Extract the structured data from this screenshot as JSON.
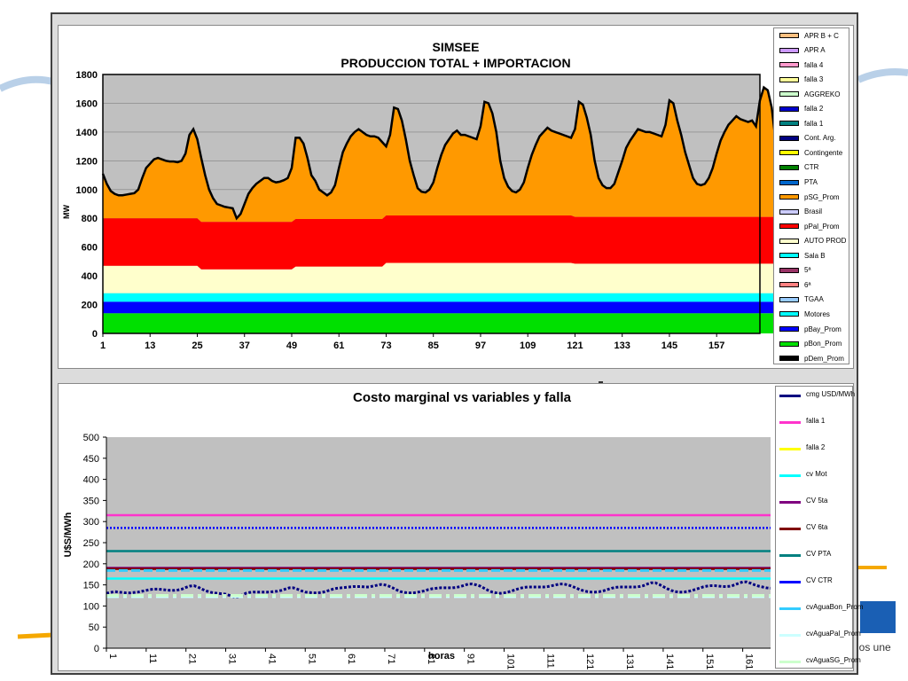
{
  "slide": {
    "logo_text": "nos une",
    "colors": {
      "frame": "#dcdcdc",
      "plot_bg": "#c0c0c0",
      "accent": "#f5a800"
    }
  },
  "chart_top": {
    "chart_data": {
      "type": "area",
      "title": "SIMSEE",
      "subtitle": "PRODUCCION TOTAL + IMPORTACION",
      "ylabel": "MW",
      "xlabel": "",
      "ylim": [
        0,
        1800
      ],
      "xlim": [
        1,
        168
      ],
      "yticks": [
        "0",
        "200",
        "400",
        "600",
        "800",
        "1000",
        "1200",
        "1400",
        "1600",
        "1800"
      ],
      "xticks": [
        "1",
        "13",
        "25",
        "37",
        "49",
        "61",
        "73",
        "85",
        "97",
        "109",
        "121",
        "133",
        "145",
        "157"
      ],
      "grid": true,
      "legend_position": "right",
      "stack_order": [
        "pBon_Prom",
        "pBay_Prom",
        "Motores",
        "AUTO PROD",
        "pPal_Prom",
        "pSG_Prom"
      ],
      "layers": [
        {
          "name": "pBon_Prom",
          "color": "#00e000",
          "segments": [
            [
              1,
              140
            ],
            [
              168,
              140
            ]
          ]
        },
        {
          "name": "pBay_Prom",
          "color": "#0000ff",
          "segments": [
            [
              1,
              80
            ],
            [
              168,
              80
            ]
          ]
        },
        {
          "name": "Motores",
          "color": "#00ffff",
          "segments": [
            [
              1,
              60
            ],
            [
              168,
              60
            ]
          ]
        },
        {
          "name": "AUTO PROD",
          "color": "#ffffcc",
          "segments": [
            [
              1,
              190
            ],
            [
              25,
              190
            ],
            [
              26,
              165
            ],
            [
              49,
              165
            ],
            [
              50,
              185
            ],
            [
              72,
              185
            ],
            [
              73,
              210
            ],
            [
              120,
              210
            ],
            [
              121,
              205
            ],
            [
              168,
              205
            ]
          ]
        },
        {
          "name": "pPal_Prom",
          "color": "#ff0000",
          "segments": [
            [
              1,
              330
            ],
            [
              25,
              330
            ],
            [
              26,
              330
            ],
            [
              49,
              330
            ],
            [
              50,
              330
            ],
            [
              72,
              330
            ],
            [
              73,
              330
            ],
            [
              120,
              330
            ],
            [
              121,
              325
            ],
            [
              168,
              325
            ]
          ]
        }
      ],
      "pDem_Prom": [
        1110,
        1040,
        990,
        970,
        960,
        960,
        965,
        970,
        975,
        1000,
        1080,
        1150,
        1180,
        1210,
        1220,
        1210,
        1200,
        1195,
        1195,
        1190,
        1200,
        1250,
        1380,
        1420,
        1350,
        1220,
        1100,
        1000,
        940,
        900,
        890,
        880,
        875,
        870,
        800,
        830,
        900,
        970,
        1010,
        1040,
        1060,
        1080,
        1080,
        1060,
        1050,
        1055,
        1065,
        1080,
        1150,
        1360,
        1360,
        1320,
        1220,
        1100,
        1060,
        1000,
        980,
        960,
        980,
        1030,
        1150,
        1260,
        1320,
        1370,
        1400,
        1420,
        1400,
        1380,
        1370,
        1370,
        1360,
        1330,
        1300,
        1380,
        1570,
        1560,
        1480,
        1350,
        1200,
        1100,
        1010,
        985,
        980,
        1000,
        1050,
        1150,
        1240,
        1310,
        1350,
        1390,
        1410,
        1380,
        1380,
        1370,
        1360,
        1350,
        1440,
        1610,
        1600,
        1530,
        1400,
        1200,
        1080,
        1020,
        990,
        980,
        1000,
        1050,
        1150,
        1240,
        1310,
        1370,
        1400,
        1430,
        1410,
        1400,
        1390,
        1380,
        1370,
        1360,
        1420,
        1610,
        1590,
        1500,
        1380,
        1200,
        1080,
        1030,
        1010,
        1010,
        1040,
        1120,
        1200,
        1290,
        1340,
        1380,
        1420,
        1410,
        1400,
        1400,
        1390,
        1380,
        1370,
        1450,
        1620,
        1600,
        1480,
        1380,
        1260,
        1170,
        1080,
        1040,
        1030,
        1040,
        1080,
        1150,
        1250,
        1340,
        1400,
        1450,
        1480,
        1510,
        1490,
        1480,
        1470,
        1480,
        1440,
        1620,
        1710,
        1690,
        1570,
        1330
      ],
      "legend": [
        {
          "name": "APR B + C",
          "color": "#ffc080"
        },
        {
          "name": "APR A",
          "color": "#cc99ff"
        },
        {
          "name": "falla 4",
          "color": "#ff99cc"
        },
        {
          "name": "falla 3",
          "color": "#ffff99"
        },
        {
          "name": "AGGREKO",
          "color": "#ccffcc"
        },
        {
          "name": "falla 2",
          "color": "#0000cc"
        },
        {
          "name": "falla 1",
          "color": "#008080"
        },
        {
          "name": "Cont. Arg.",
          "color": "#000080"
        },
        {
          "name": "Contingente",
          "color": "#ffff00"
        },
        {
          "name": "CTR",
          "color": "#008000"
        },
        {
          "name": "PTA",
          "color": "#0066cc"
        },
        {
          "name": "pSG_Prom",
          "color": "#ff9900"
        },
        {
          "name": "Brasil",
          "color": "#ccccff"
        },
        {
          "name": "pPal_Prom",
          "color": "#ff0000"
        },
        {
          "name": "AUTO PROD",
          "color": "#ffffcc"
        },
        {
          "name": "Sala B",
          "color": "#00ffff"
        },
        {
          "name": "5ª",
          "color": "#993366"
        },
        {
          "name": "6ª",
          "color": "#ff8080"
        },
        {
          "name": "TGAA",
          "color": "#99ccff"
        },
        {
          "name": "Motores",
          "color": "#00ffff"
        },
        {
          "name": "pBay_Prom",
          "color": "#0000ff"
        },
        {
          "name": "pBon_Prom",
          "color": "#00e000"
        },
        {
          "name": "pDem_Prom",
          "color": "#000000"
        }
      ]
    }
  },
  "chart_bottom": {
    "chart_data": {
      "type": "line",
      "title": "Costo marginal vs variables y falla",
      "xlabel": "horas",
      "ylabel": "U$S/MWh",
      "ylim": [
        0,
        500
      ],
      "xlim": [
        1,
        168
      ],
      "yticks": [
        "0",
        "50",
        "100",
        "150",
        "200",
        "250",
        "300",
        "350",
        "400",
        "450",
        "500"
      ],
      "xticks": [
        "1",
        "11",
        "21",
        "31",
        "41",
        "51",
        "61",
        "71",
        "81",
        "91",
        "101",
        "111",
        "121",
        "131",
        "141",
        "151",
        "161"
      ],
      "grid": false,
      "legend_position": "right",
      "series": [
        {
          "name": "cmg USD/MWh",
          "color": "#000080",
          "style": "dotted-thick",
          "values": [
            130,
            132,
            134,
            133,
            132,
            131,
            131,
            132,
            133,
            135,
            137,
            139,
            140,
            140,
            139,
            138,
            137,
            137,
            138,
            140,
            144,
            147,
            148,
            145,
            140,
            136,
            133,
            131,
            130,
            129,
            128,
            125,
            121,
            121,
            125,
            130,
            132,
            133,
            133,
            133,
            133,
            133,
            134,
            135,
            137,
            140,
            143,
            143,
            140,
            136,
            133,
            132,
            131,
            131,
            132,
            134,
            137,
            140,
            142,
            143,
            144,
            145,
            146,
            146,
            146,
            145,
            145,
            147,
            149,
            151,
            150,
            147,
            143,
            138,
            134,
            132,
            131,
            131,
            132,
            134,
            136,
            139,
            141,
            142,
            143,
            143,
            143,
            143,
            144,
            146,
            149,
            152,
            152,
            150,
            147,
            142,
            137,
            133,
            131,
            130,
            131,
            133,
            136,
            139,
            142,
            144,
            145,
            145,
            145,
            145,
            145,
            146,
            148,
            150,
            152,
            152,
            150,
            147,
            143,
            139,
            136,
            134,
            133,
            133,
            134,
            136,
            139,
            142,
            144,
            145,
            145,
            145,
            145,
            145,
            146,
            148,
            152,
            155,
            155,
            151,
            146,
            141,
            137,
            134,
            133,
            133,
            134,
            136,
            139,
            142,
            145,
            147,
            148,
            148,
            147,
            146,
            146,
            147,
            150,
            154,
            157,
            157,
            154,
            150,
            147,
            145,
            143,
            142
          ]
        },
        {
          "name": "falla 1",
          "color": "#ff33cc",
          "style": "solid",
          "constant": 315
        },
        {
          "name": "falla 2",
          "color": "#ffff00",
          "style": "solid",
          "constant": null
        },
        {
          "name": "cv Mot",
          "color": "#00ffff",
          "style": "solid",
          "constant": 165
        },
        {
          "name": "CV 5ta",
          "color": "#800080",
          "style": "solid",
          "constant": 190
        },
        {
          "name": "CV 6ta",
          "color": "#800000",
          "style": "solid",
          "constant": 188
        },
        {
          "name": "CV PTA",
          "color": "#008080",
          "style": "solid",
          "constant": 230
        },
        {
          "name": "CV CTR",
          "color": "#0000ff",
          "style": "dotted",
          "constant": 285
        },
        {
          "name": "cvAguaBon_Prom",
          "color": "#33ccff",
          "style": "dashed",
          "constant": 184
        },
        {
          "name": "cvAguaPal_Prom",
          "color": "#ccffff",
          "style": "dashdot",
          "constant": 122
        },
        {
          "name": "cvAguaSG_Prom",
          "color": "#ccffcc",
          "style": "dashdot",
          "constant": 125
        }
      ],
      "legend": [
        {
          "name": "cmg USD/MWh",
          "color": "#000080"
        },
        {
          "name": "falla 1",
          "color": "#ff33cc"
        },
        {
          "name": "falla 2",
          "color": "#ffff00"
        },
        {
          "name": "cv Mot",
          "color": "#00ffff"
        },
        {
          "name": "CV 5ta",
          "color": "#800080"
        },
        {
          "name": "CV 6ta",
          "color": "#800000"
        },
        {
          "name": "CV PTA",
          "color": "#008080"
        },
        {
          "name": "CV CTR",
          "color": "#0000ff"
        },
        {
          "name": "cvAguaBon_Prom",
          "color": "#33ccff"
        },
        {
          "name": "cvAguaPal_Prom",
          "color": "#ccffff"
        },
        {
          "name": "cvAguaSG_Prom",
          "color": "#ccffcc"
        }
      ]
    }
  }
}
